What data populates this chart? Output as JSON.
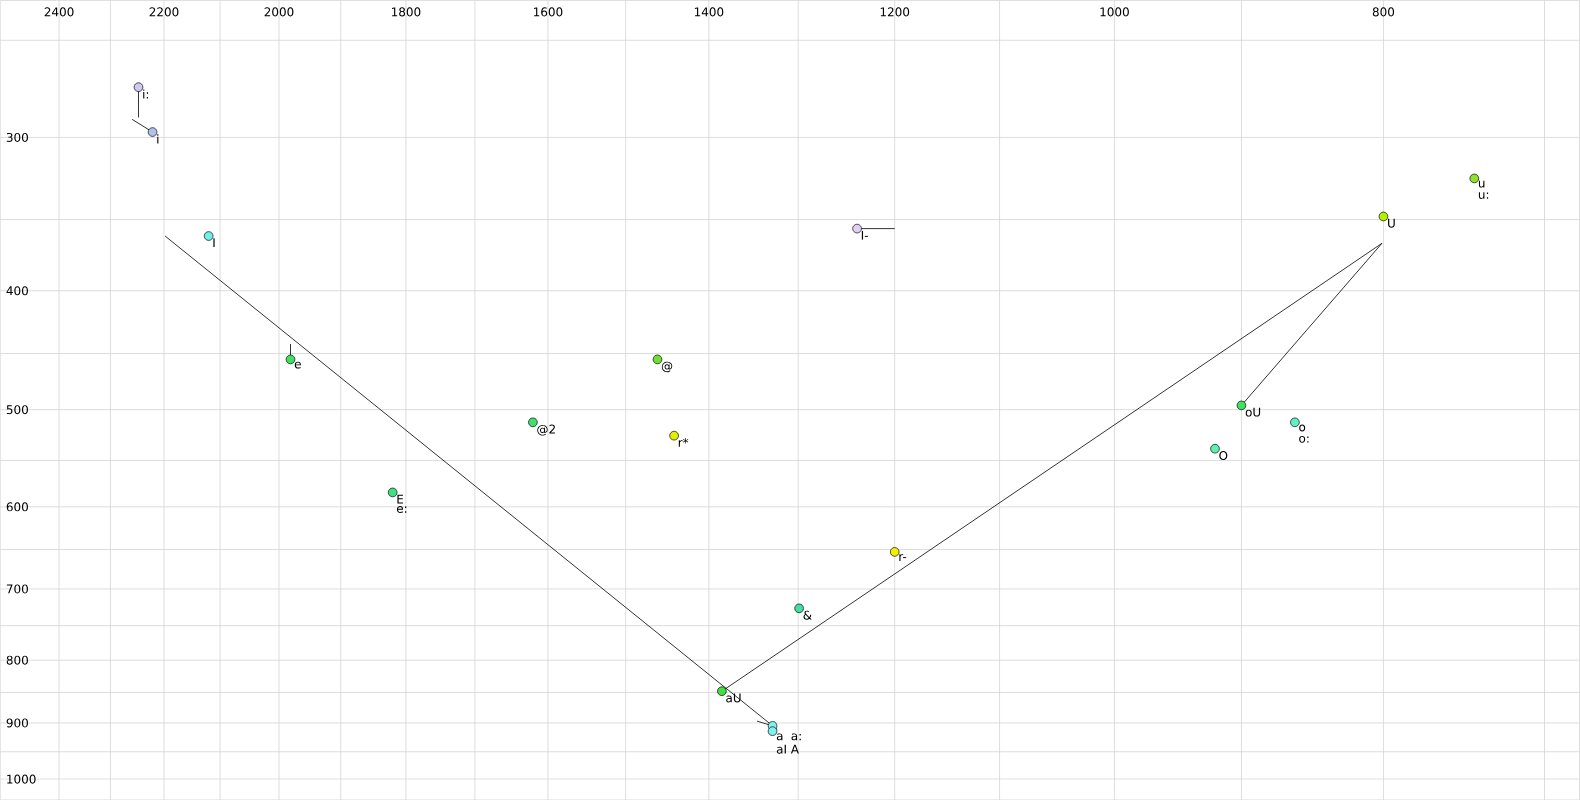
{
  "chart_data": {
    "type": "scatter",
    "xlim": [
      2520,
      680
    ],
    "ylim": [
      1040,
      232
    ],
    "log": "xy",
    "grid": true,
    "xticks": [
      2400,
      {
        "value": 2300,
        "label": null
      },
      2200,
      {
        "value": 2100,
        "label": null
      },
      2000,
      {
        "value": 1900,
        "label": null
      },
      1800,
      {
        "value": 1700,
        "label": null
      },
      1600,
      {
        "value": 1500,
        "label": null
      },
      1400,
      {
        "value": 1300,
        "label": null
      },
      1200,
      {
        "value": 1100,
        "label": null
      },
      1000,
      {
        "value": 900,
        "label": null
      },
      800,
      {
        "value": 700,
        "label": null
      }
    ],
    "yticks": [
      {
        "value": 250,
        "label": null
      },
      300,
      {
        "value": 350,
        "label": null
      },
      400,
      {
        "value": 450,
        "label": null
      },
      500,
      {
        "value": 550,
        "label": null
      },
      600,
      {
        "value": 650,
        "label": null
      },
      700,
      {
        "value": 750,
        "label": null
      },
      800,
      {
        "value": 850,
        "label": null
      },
      900,
      {
        "value": 950,
        "label": null
      },
      1000
    ],
    "series": [
      {
        "type": "line",
        "marker": "none",
        "color": "#000000",
        "x": [
          2247,
          2247
        ],
        "values": [
          273,
          289
        ]
      },
      {
        "type": "line",
        "marker": "none",
        "color": "#000000",
        "x": [
          2259,
          2221
        ],
        "values": [
          290,
          297
        ]
      },
      {
        "type": "line",
        "marker": "none",
        "color": "#000000",
        "x": [
          1981,
          1981
        ],
        "values": [
          442,
          455
        ]
      },
      {
        "type": "line",
        "marker": "none",
        "color": "#000000",
        "x": [
          1238,
          1200
        ],
        "values": [
          356,
          356
        ]
      },
      {
        "type": "line",
        "marker": "none",
        "color": "#000000",
        "x": [
          2198,
          1323
        ],
        "values": [
          361,
          911
        ]
      },
      {
        "type": "line",
        "marker": "none",
        "color": "#000000",
        "x": [
          1385,
          801,
          900
        ],
        "values": [
          848,
          366,
          496
        ]
      },
      {
        "type": "line",
        "marker": "none",
        "color": "#000000",
        "x": [
          1345,
          1328
        ],
        "values": [
          897,
          905
        ]
      },
      {
        "type": "scatter",
        "marker": "circle",
        "x": [
          2247,
          2221,
          2120,
          1981,
          1461,
          1620,
          1441,
          1820,
          1385,
          1328,
          1328,
          1299,
          1238,
          1200,
          800,
          742,
          900,
          861,
          920
        ],
        "values": [
          273,
          297,
          361,
          455,
          455,
          512,
          525,
          584,
          848,
          905,
          914,
          726,
          356,
          653,
          348,
          324,
          496,
          512,
          538
        ],
        "colors": [
          "#d0c8f0",
          "#b0c0f0",
          "#70f0e8",
          "#40e060",
          "#70e030",
          "#40e070",
          "#e0f000",
          "#40e080",
          "#40e040",
          "#80f0f0",
          "#80f0f0",
          "#40e0a0",
          "#e0d0f8",
          "#f0f000",
          "#b0f000",
          "#90e030",
          "#40e060",
          "#60f0c8",
          "#60f0b0"
        ]
      }
    ],
    "annotations": [
      {
        "text": "i:",
        "x": 2247,
        "y": 273
      },
      {
        "text": "i",
        "x": 2221,
        "y": 297
      },
      {
        "text": "I",
        "x": 2120,
        "y": 361
      },
      {
        "text": "e",
        "x": 1981,
        "y": 455
      },
      {
        "text": "@",
        "x": 1461,
        "y": 455
      },
      {
        "text": "@2",
        "x": 1620,
        "y": 512
      },
      {
        "text": "r*",
        "x": 1441,
        "y": 525
      },
      {
        "text": "E",
        "x": 1820,
        "y": 584
      },
      {
        "text": "e:",
        "x": 1820,
        "y": 584
      },
      {
        "text": "aU",
        "x": 1385,
        "y": 848
      },
      {
        "text": "a",
        "x": 1328,
        "y": 914
      },
      {
        "text": "aI",
        "x": 1328,
        "y": 914
      },
      {
        "text": "a:",
        "x": 1328,
        "y": 914
      },
      {
        "text": "A",
        "x": 1328,
        "y": 914
      },
      {
        "text": "&",
        "x": 1299,
        "y": 726
      },
      {
        "text": "I-",
        "x": 1238,
        "y": 356
      },
      {
        "text": "r-",
        "x": 1200,
        "y": 653
      },
      {
        "text": "U",
        "x": 800,
        "y": 348
      },
      {
        "text": "u",
        "x": 742,
        "y": 324
      },
      {
        "text": "u:",
        "x": 742,
        "y": 324
      },
      {
        "text": "oU",
        "x": 900,
        "y": 496
      },
      {
        "text": "o",
        "x": 861,
        "y": 512
      },
      {
        "text": "o:",
        "x": 861,
        "y": 512
      },
      {
        "text": "O",
        "x": 920,
        "y": 538
      }
    ]
  }
}
